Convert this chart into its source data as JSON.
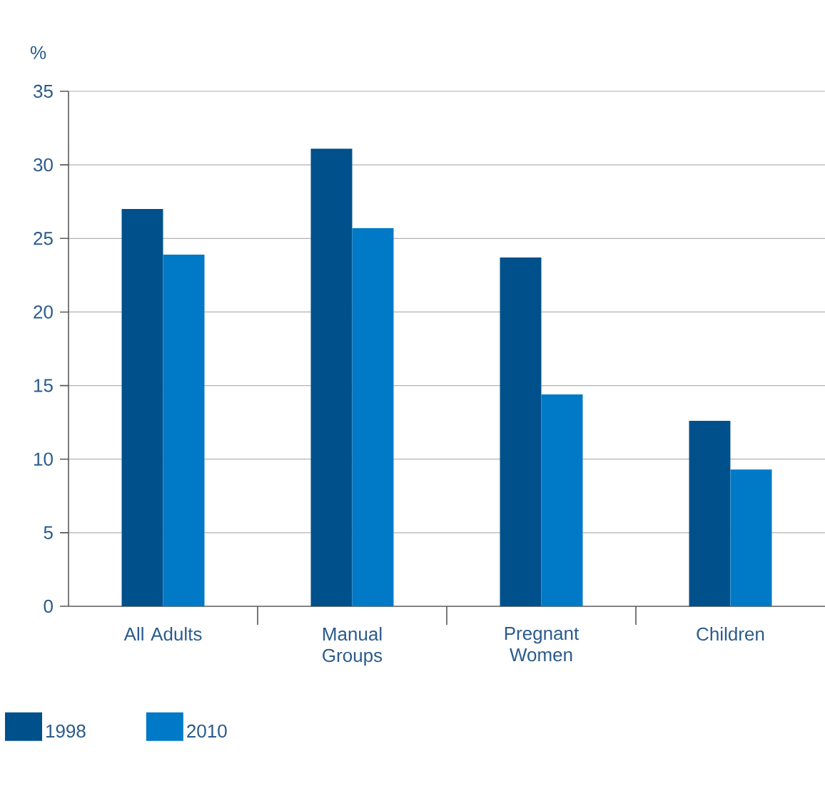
{
  "chart_data": {
    "type": "bar",
    "ylabel": "%",
    "categories": [
      "All Adults",
      "Manual Groups",
      "Pregnant Women",
      "Children"
    ],
    "series": [
      {
        "name": "1998",
        "color": "#00508c",
        "values": [
          27,
          31.1,
          23.7,
          12.6
        ]
      },
      {
        "name": "2010",
        "color": "#0079c6",
        "values": [
          23.9,
          25.7,
          14.4,
          9.3
        ]
      }
    ],
    "ylim": [
      0,
      35
    ],
    "yticks": [
      0,
      5,
      10,
      15,
      20,
      25,
      30,
      35
    ],
    "grid": "y",
    "legend": "bottom left"
  }
}
